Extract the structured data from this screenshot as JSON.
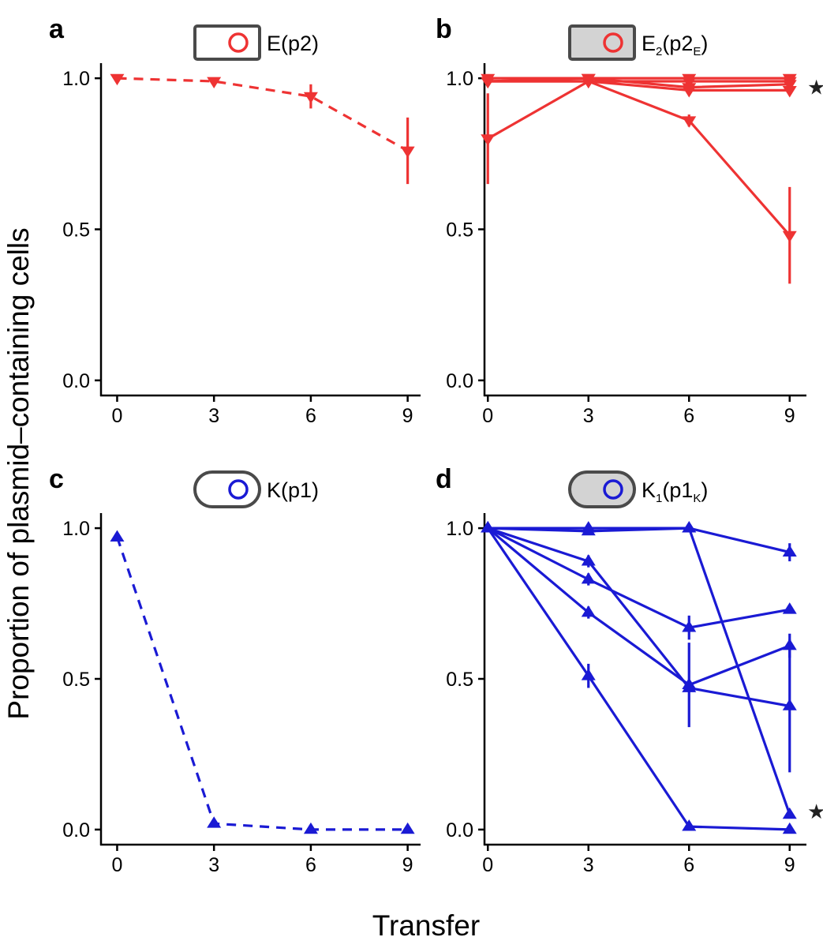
{
  "chart_data": {
    "ylabel": "Proportion of plasmid–containing cells",
    "xlabel": "Transfer",
    "panels": [
      {
        "letter": "a",
        "type": "line",
        "cell_shape": "rectangle",
        "cell_fill": "#ffffff",
        "color": "#ee3333",
        "line_style": "dashed",
        "marker": "triangle-down",
        "label": {
          "main": "E(p2)",
          "sub1": "",
          "sub1_after": "",
          "sub2": "",
          "tail": ""
        },
        "x": [
          0,
          3,
          6,
          9
        ],
        "xlim": [
          -0.5,
          9.4
        ],
        "ylim": [
          -0.05,
          1.05
        ],
        "xticks": [
          "0",
          "3",
          "6",
          "9"
        ],
        "yticks": [
          "0.0",
          "0.5",
          "1.0"
        ],
        "annotation": "",
        "series": [
          {
            "values": [
              1.0,
              0.99,
              0.94,
              0.76
            ],
            "errors": [
              0.0,
              0.0,
              0.04,
              0.11
            ]
          }
        ]
      },
      {
        "letter": "b",
        "type": "line",
        "cell_shape": "rectangle",
        "cell_fill": "#d3d3d3",
        "color": "#ee3333",
        "line_style": "solid",
        "marker": "triangle-down",
        "label": {
          "main": "E",
          "sub1": "2",
          "sub1_after": "(p2",
          "sub2": "E",
          "tail": ")"
        },
        "x": [
          0,
          3,
          6,
          9
        ],
        "xlim": [
          -0.1,
          9.5
        ],
        "ylim": [
          -0.05,
          1.05
        ],
        "xticks": [
          "0",
          "3",
          "6",
          "9"
        ],
        "yticks": [
          "0.0",
          "0.5",
          "1.0"
        ],
        "annotation": "★",
        "series": [
          {
            "values": [
              1.0,
              1.0,
              1.0,
              1.0
            ],
            "errors": [
              0.0,
              0.0,
              0.0,
              0.0
            ]
          },
          {
            "values": [
              0.99,
              0.99,
              0.99,
              0.99
            ],
            "errors": [
              0.0,
              0.0,
              0.0,
              0.0
            ]
          },
          {
            "values": [
              0.99,
              1.0,
              0.97,
              0.98
            ],
            "errors": [
              0.0,
              0.0,
              0.01,
              0.01
            ]
          },
          {
            "values": [
              0.99,
              0.99,
              0.96,
              0.96
            ],
            "errors": [
              0.0,
              0.0,
              0.01,
              0.01
            ]
          },
          {
            "values": [
              0.8,
              0.99,
              0.86,
              0.48
            ],
            "errors": [
              0.15,
              0.0,
              0.02,
              0.16
            ]
          }
        ]
      },
      {
        "letter": "c",
        "type": "line",
        "cell_shape": "pill",
        "cell_fill": "#ffffff",
        "color": "#1a1ad4",
        "line_style": "dashed",
        "marker": "triangle-up",
        "label": {
          "main": "K(p1)",
          "sub1": "",
          "sub1_after": "",
          "sub2": "",
          "tail": ""
        },
        "x": [
          0,
          3,
          6,
          9
        ],
        "xlim": [
          -0.5,
          9.4
        ],
        "ylim": [
          -0.05,
          1.05
        ],
        "xticks": [
          "0",
          "3",
          "6",
          "9"
        ],
        "yticks": [
          "0.0",
          "0.5",
          "1.0"
        ],
        "annotation": "",
        "series": [
          {
            "values": [
              0.97,
              0.02,
              0.0,
              0.0
            ],
            "errors": [
              0.0,
              0.0,
              0.0,
              0.0
            ]
          }
        ]
      },
      {
        "letter": "d",
        "type": "line",
        "cell_shape": "pill",
        "cell_fill": "#d3d3d3",
        "color": "#1a1ad4",
        "line_style": "solid",
        "marker": "triangle-up",
        "label": {
          "main": "K",
          "sub1": "1",
          "sub1_after": "(p1",
          "sub2": "K",
          "tail": ")"
        },
        "x": [
          0,
          3,
          6,
          9
        ],
        "xlim": [
          -0.1,
          9.5
        ],
        "ylim": [
          -0.05,
          1.05
        ],
        "xticks": [
          "0",
          "3",
          "6",
          "9"
        ],
        "yticks": [
          "0.0",
          "0.5",
          "1.0"
        ],
        "annotation": "★",
        "series": [
          {
            "values": [
              1.0,
              1.0,
              1.0,
              0.92
            ],
            "errors": [
              0.0,
              0.0,
              0.0,
              0.03
            ]
          },
          {
            "values": [
              1.0,
              0.99,
              1.0,
              0.05
            ],
            "errors": [
              0.0,
              0.0,
              0.0,
              0.0
            ]
          },
          {
            "values": [
              1.0,
              0.89,
              0.47,
              0.41
            ],
            "errors": [
              0.0,
              0.02,
              0.0,
              0.22
            ]
          },
          {
            "values": [
              1.0,
              0.83,
              0.67,
              0.73
            ],
            "errors": [
              0.0,
              0.02,
              0.04,
              0.01
            ]
          },
          {
            "values": [
              1.0,
              0.72,
              0.48,
              0.61
            ],
            "errors": [
              0.0,
              0.02,
              0.14,
              0.04
            ]
          },
          {
            "values": [
              1.0,
              0.51,
              0.01,
              0.0
            ],
            "errors": [
              0.0,
              0.04,
              0.0,
              0.0
            ]
          }
        ]
      }
    ]
  }
}
